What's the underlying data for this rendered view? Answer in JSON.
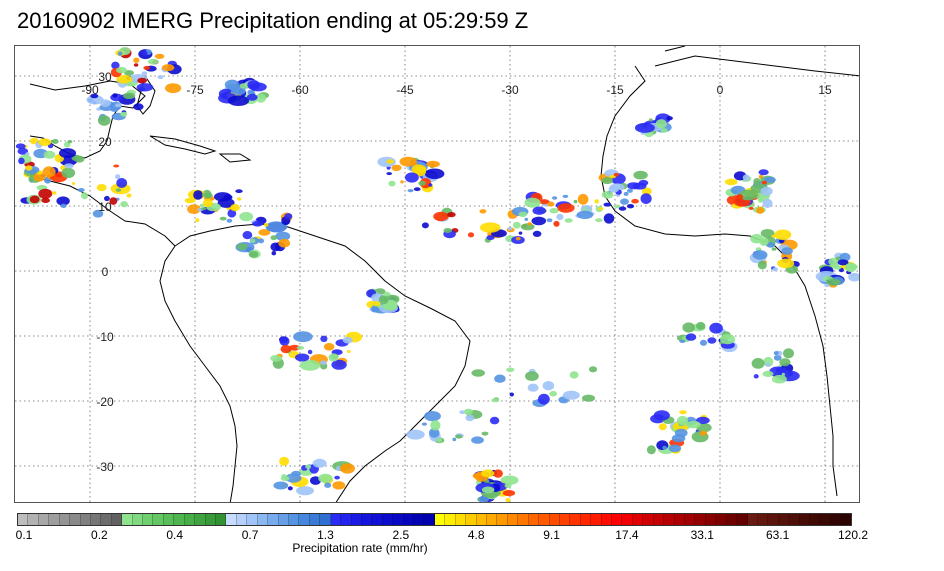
{
  "title": "20160902 IMERG Precipitation ending at 05:29:59 Z",
  "map": {
    "lon_labels": [
      "-90",
      "-75",
      "-60",
      "-45",
      "-30",
      "-15",
      "0",
      "15"
    ],
    "lat_labels": [
      "30",
      "20",
      "10",
      "0",
      "-10",
      "-20",
      "-30"
    ],
    "gridline_style": "dotted",
    "coastline_color": "#000000",
    "background": "#ffffff"
  },
  "colorbar": {
    "colors": [
      "#bdbdbd",
      "#b2b2b2",
      "#a8a8a8",
      "#9e9e9e",
      "#949494",
      "#8a8a8a",
      "#808080",
      "#767676",
      "#6c6c6c",
      "#616161",
      "#8fe38f",
      "#7fd97f",
      "#6fcf6f",
      "#63c763",
      "#58bf58",
      "#4fb64f",
      "#47ad47",
      "#3fa33f",
      "#389a38",
      "#339133",
      "#c8dcff",
      "#b4d0fb",
      "#a0c4f7",
      "#8cb8f2",
      "#78abed",
      "#669fe8",
      "#5593e3",
      "#4687de",
      "#3a7bd8",
      "#2f6fd2",
      "#2a2af5",
      "#2222ee",
      "#1a1ae6",
      "#1414de",
      "#0f0fd6",
      "#0b0bce",
      "#0808c6",
      "#0505be",
      "#0303b6",
      "#0000ae",
      "#ffff00",
      "#ffee00",
      "#ffdd00",
      "#ffcc00",
      "#ffbb00",
      "#ffaa00",
      "#ff9900",
      "#ff8800",
      "#ff7700",
      "#ff6600",
      "#ff5a00",
      "#ff4d00",
      "#ff4000",
      "#ff3300",
      "#ff2600",
      "#ff1a00",
      "#ff0d00",
      "#ff0000",
      "#f00000",
      "#e00000",
      "#d00000",
      "#c40000",
      "#b80000",
      "#ac0000",
      "#a00000",
      "#940000",
      "#880000",
      "#7c0000",
      "#700000",
      "#640000",
      "#6b1a12",
      "#64170f",
      "#5d140d",
      "#56110a",
      "#4f0e08",
      "#480b06",
      "#410904",
      "#3a0703",
      "#330502",
      "#2c0301"
    ],
    "labels": [
      "0.1",
      "0.2",
      "0.4",
      "0.7",
      "1.3",
      "2.5",
      "4.8",
      "9.1",
      "17.4",
      "33.1",
      "63.1",
      "120.2"
    ],
    "axis_title": "Precipitation rate (mm/hr)"
  }
}
